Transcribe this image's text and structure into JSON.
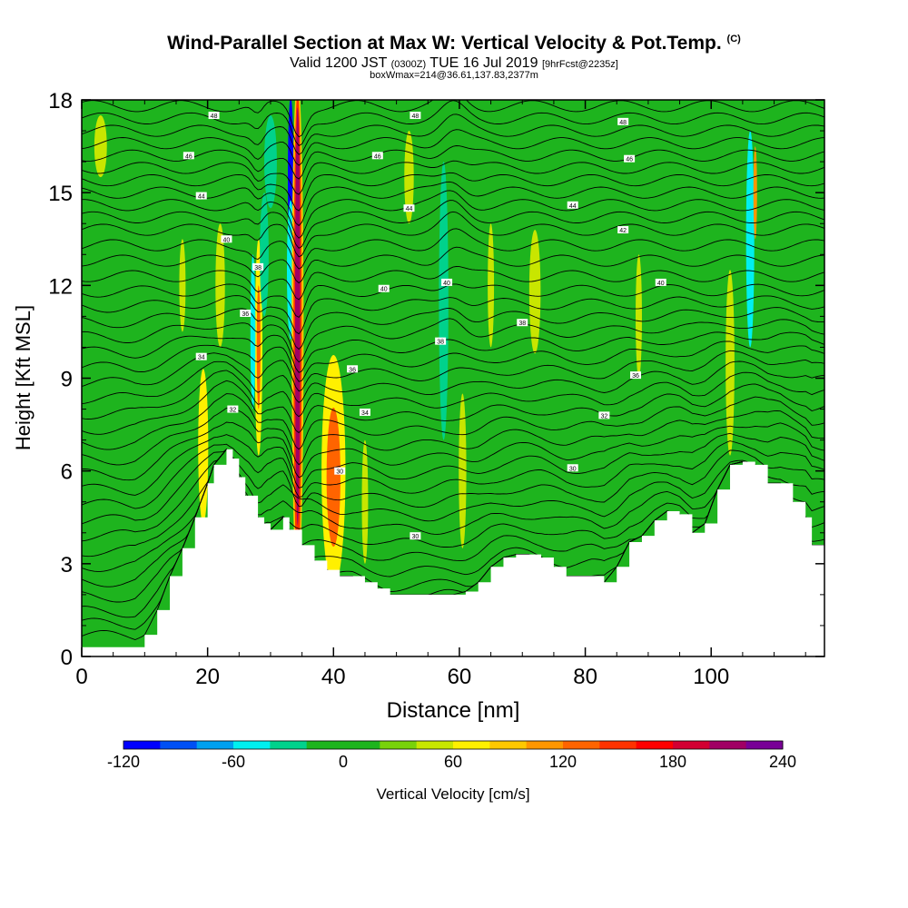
{
  "title": {
    "main": "Wind-Parallel Section at Max W: Vertical Velocity & Pot.Temp.",
    "copyright": "(C)",
    "valid_prefix": "Valid 1200 JST",
    "utc": "(0300Z)",
    "valid_date": "TUE 16 Jul 2019",
    "forecast": "[9hrFcst@2235z]",
    "box_info": "boxWmax=214@36.61,137.83,2377m"
  },
  "colors": {
    "background_fill": "#1eb41e",
    "terrain": "#ffffff",
    "contour": "#000000"
  },
  "chart_data": {
    "type": "heatmap",
    "xlabel": "Distance [nm]",
    "ylabel": "Height [Kft MSL]",
    "xlim": [
      0,
      118
    ],
    "ylim": [
      0,
      18
    ],
    "xticks": [
      0,
      20,
      40,
      60,
      80,
      100
    ],
    "yticks": [
      0,
      3,
      6,
      9,
      12,
      15,
      18
    ],
    "colorbar": {
      "label": "Vertical Velocity [cm/s]",
      "range": [
        -120,
        240
      ],
      "step": 20,
      "tick_labels": [
        "-120",
        "-60",
        "0",
        "60",
        "120",
        "180",
        "240"
      ],
      "colors": [
        "#0000ff",
        "#0050f5",
        "#00a0f0",
        "#00f0f0",
        "#00d28c",
        "#1eb41e",
        "#1eb41e",
        "#78d20a",
        "#c8e600",
        "#fff000",
        "#ffc800",
        "#ff9600",
        "#ff6400",
        "#ff3200",
        "#ff0000",
        "#d20032",
        "#a00064",
        "#780096"
      ]
    },
    "terrain_profile": {
      "x": [
        0,
        8.5,
        10,
        12,
        14,
        16,
        18,
        20,
        21,
        23,
        24,
        25,
        26,
        28,
        29,
        30,
        32,
        33,
        35,
        37,
        39,
        41,
        43,
        45,
        47,
        49,
        51,
        53,
        55,
        57,
        59,
        61,
        63,
        65,
        67,
        69,
        71,
        73,
        75,
        77,
        79,
        81,
        83,
        85,
        87,
        89,
        91,
        93,
        95,
        97,
        99,
        101,
        103,
        105,
        107,
        109,
        111,
        113,
        115,
        116,
        118
      ],
      "height_kft": [
        0.3,
        0.3,
        0.7,
        1.5,
        2.6,
        3.5,
        4.5,
        5.6,
        6.2,
        6.7,
        6.4,
        5.8,
        5.2,
        4.5,
        4.3,
        4.1,
        4.5,
        4.1,
        3.6,
        3.1,
        2.8,
        2.6,
        2.6,
        2.4,
        2.2,
        2.0,
        2.0,
        2.0,
        2.0,
        2.0,
        2.0,
        2.1,
        2.4,
        2.9,
        3.2,
        3.3,
        3.3,
        3.2,
        2.9,
        2.6,
        2.6,
        2.6,
        2.4,
        2.9,
        3.7,
        3.9,
        4.4,
        4.7,
        4.6,
        4.0,
        4.3,
        5.4,
        6.2,
        6.3,
        6.2,
        5.6,
        5.6,
        5.0,
        4.5,
        3.6,
        3.6
      ]
    },
    "velocity_cells": [
      {
        "x": 33.2,
        "y": 15.5,
        "w": 0.9,
        "h": 5.2,
        "value": -120
      },
      {
        "x": 33.2,
        "y": 12.5,
        "w": 1.2,
        "h": 4.5,
        "value": -60
      },
      {
        "x": 34.3,
        "y": 10.5,
        "w": 1.9,
        "h": 16.5,
        "value": 80
      },
      {
        "x": 34.3,
        "y": 10.5,
        "w": 1.3,
        "h": 15.5,
        "value": 140
      },
      {
        "x": 34.3,
        "y": 11.0,
        "w": 0.8,
        "h": 13.5,
        "value": 200
      },
      {
        "x": 40.0,
        "y": 6.0,
        "w": 3.8,
        "h": 7.5,
        "value": 60
      },
      {
        "x": 40.0,
        "y": 5.8,
        "w": 2.2,
        "h": 4.5,
        "value": 120
      },
      {
        "x": 28.1,
        "y": 10.0,
        "w": 1.2,
        "h": 7.0,
        "value": 60
      },
      {
        "x": 28.1,
        "y": 10.0,
        "w": 0.6,
        "h": 4.0,
        "value": 120
      },
      {
        "x": 27.2,
        "y": 10.5,
        "w": 0.8,
        "h": 5.0,
        "value": -60
      },
      {
        "x": 19.3,
        "y": 6.8,
        "w": 1.6,
        "h": 5.0,
        "value": 60
      },
      {
        "x": 29.0,
        "y": 13.0,
        "w": 1.4,
        "h": 4.0,
        "value": -40
      },
      {
        "x": 57.5,
        "y": 11.5,
        "w": 1.5,
        "h": 9.0,
        "value": -40
      },
      {
        "x": 106.2,
        "y": 13.5,
        "w": 1.3,
        "h": 7.0,
        "value": -60
      },
      {
        "x": 103.0,
        "y": 9.5,
        "w": 1.4,
        "h": 6.0,
        "value": 40
      },
      {
        "x": 107.0,
        "y": 15.0,
        "w": 0.5,
        "h": 3.0,
        "value": 100
      },
      {
        "x": 72.0,
        "y": 11.8,
        "w": 1.8,
        "h": 4.0,
        "value": 40
      },
      {
        "x": 65.0,
        "y": 12.0,
        "w": 1.0,
        "h": 4.0,
        "value": 40
      },
      {
        "x": 60.0,
        "y": 16.3,
        "w": 2.0,
        "h": 2.0,
        "value": -20
      },
      {
        "x": 52.0,
        "y": 15.5,
        "w": 1.5,
        "h": 3.0,
        "value": 40
      },
      {
        "x": 30.0,
        "y": 16.0,
        "w": 2.0,
        "h": 3.0,
        "value": -40
      },
      {
        "x": 25.5,
        "y": 14.0,
        "w": 0.8,
        "h": 3.0,
        "value": -20
      },
      {
        "x": 60.5,
        "y": 6.0,
        "w": 1.2,
        "h": 5.0,
        "value": 40
      },
      {
        "x": 45.0,
        "y": 5.0,
        "w": 1.0,
        "h": 4.0,
        "value": 40
      },
      {
        "x": 67.0,
        "y": 4.0,
        "w": 2.0,
        "h": 2.0,
        "value": -20
      },
      {
        "x": 88.5,
        "y": 11.0,
        "w": 1.0,
        "h": 4.0,
        "value": 40
      },
      {
        "x": 3.0,
        "y": 16.5,
        "w": 2.0,
        "h": 2.0,
        "value": 40
      },
      {
        "x": 16.0,
        "y": 12.0,
        "w": 1.0,
        "h": 3.0,
        "value": 40
      },
      {
        "x": 22.0,
        "y": 12.0,
        "w": 1.5,
        "h": 4.0,
        "value": 40
      }
    ],
    "contours": {
      "levels": [
        20,
        22,
        24,
        26,
        28,
        30,
        32,
        34,
        36,
        38,
        40,
        42,
        44,
        46,
        48,
        50,
        52,
        54,
        56,
        58,
        60,
        62,
        64,
        66,
        68,
        70,
        72,
        74,
        76,
        78,
        80,
        82,
        84,
        86,
        88,
        90,
        92,
        94,
        96,
        98,
        100,
        102,
        104,
        106,
        108,
        110
      ],
      "base_heights_kft": [
        0.5,
        0.9,
        1.3,
        1.8,
        2.3,
        2.8,
        3.3,
        3.8,
        4.3,
        4.8,
        5.3,
        5.8,
        6.3,
        6.8,
        7.3,
        7.8,
        8.3,
        8.8,
        9.3,
        9.8,
        10.3,
        10.8,
        11.3,
        11.8,
        12.3,
        12.8,
        13.3,
        13.8,
        14.2,
        14.6,
        15.0,
        15.4,
        15.8,
        16.2,
        16.6,
        17.0,
        17.4,
        17.8
      ],
      "labels": [
        {
          "x": 43.0,
          "y": 9.3,
          "text": "36"
        },
        {
          "x": 48.0,
          "y": 11.9,
          "text": "40"
        },
        {
          "x": 52.0,
          "y": 14.5,
          "text": "44"
        },
        {
          "x": 57.0,
          "y": 10.2,
          "text": "38"
        },
        {
          "x": 41.0,
          "y": 6.0,
          "text": "30"
        },
        {
          "x": 45.0,
          "y": 7.9,
          "text": "34"
        },
        {
          "x": 53.0,
          "y": 3.9,
          "text": "30"
        },
        {
          "x": 78.0,
          "y": 6.1,
          "text": "30"
        },
        {
          "x": 83.0,
          "y": 7.8,
          "text": "32"
        },
        {
          "x": 88.0,
          "y": 9.1,
          "text": "36"
        },
        {
          "x": 92.0,
          "y": 12.1,
          "text": "40"
        },
        {
          "x": 86.0,
          "y": 13.8,
          "text": "42"
        },
        {
          "x": 78.0,
          "y": 14.6,
          "text": "44"
        },
        {
          "x": 87.0,
          "y": 16.1,
          "text": "46"
        },
        {
          "x": 86.0,
          "y": 17.3,
          "text": "48"
        },
        {
          "x": 19.0,
          "y": 9.7,
          "text": "34"
        },
        {
          "x": 24.0,
          "y": 8.0,
          "text": "32"
        },
        {
          "x": 26.0,
          "y": 11.1,
          "text": "36"
        },
        {
          "x": 23.0,
          "y": 13.5,
          "text": "40"
        },
        {
          "x": 28.0,
          "y": 12.6,
          "text": "38"
        },
        {
          "x": 19.0,
          "y": 14.9,
          "text": "44"
        },
        {
          "x": 17.0,
          "y": 16.2,
          "text": "46"
        },
        {
          "x": 21.0,
          "y": 17.5,
          "text": "48"
        },
        {
          "x": 47.0,
          "y": 16.2,
          "text": "46"
        },
        {
          "x": 53.0,
          "y": 17.5,
          "text": "48"
        },
        {
          "x": 58.0,
          "y": 12.1,
          "text": "40"
        },
        {
          "x": 70.0,
          "y": 10.8,
          "text": "38"
        }
      ]
    }
  }
}
